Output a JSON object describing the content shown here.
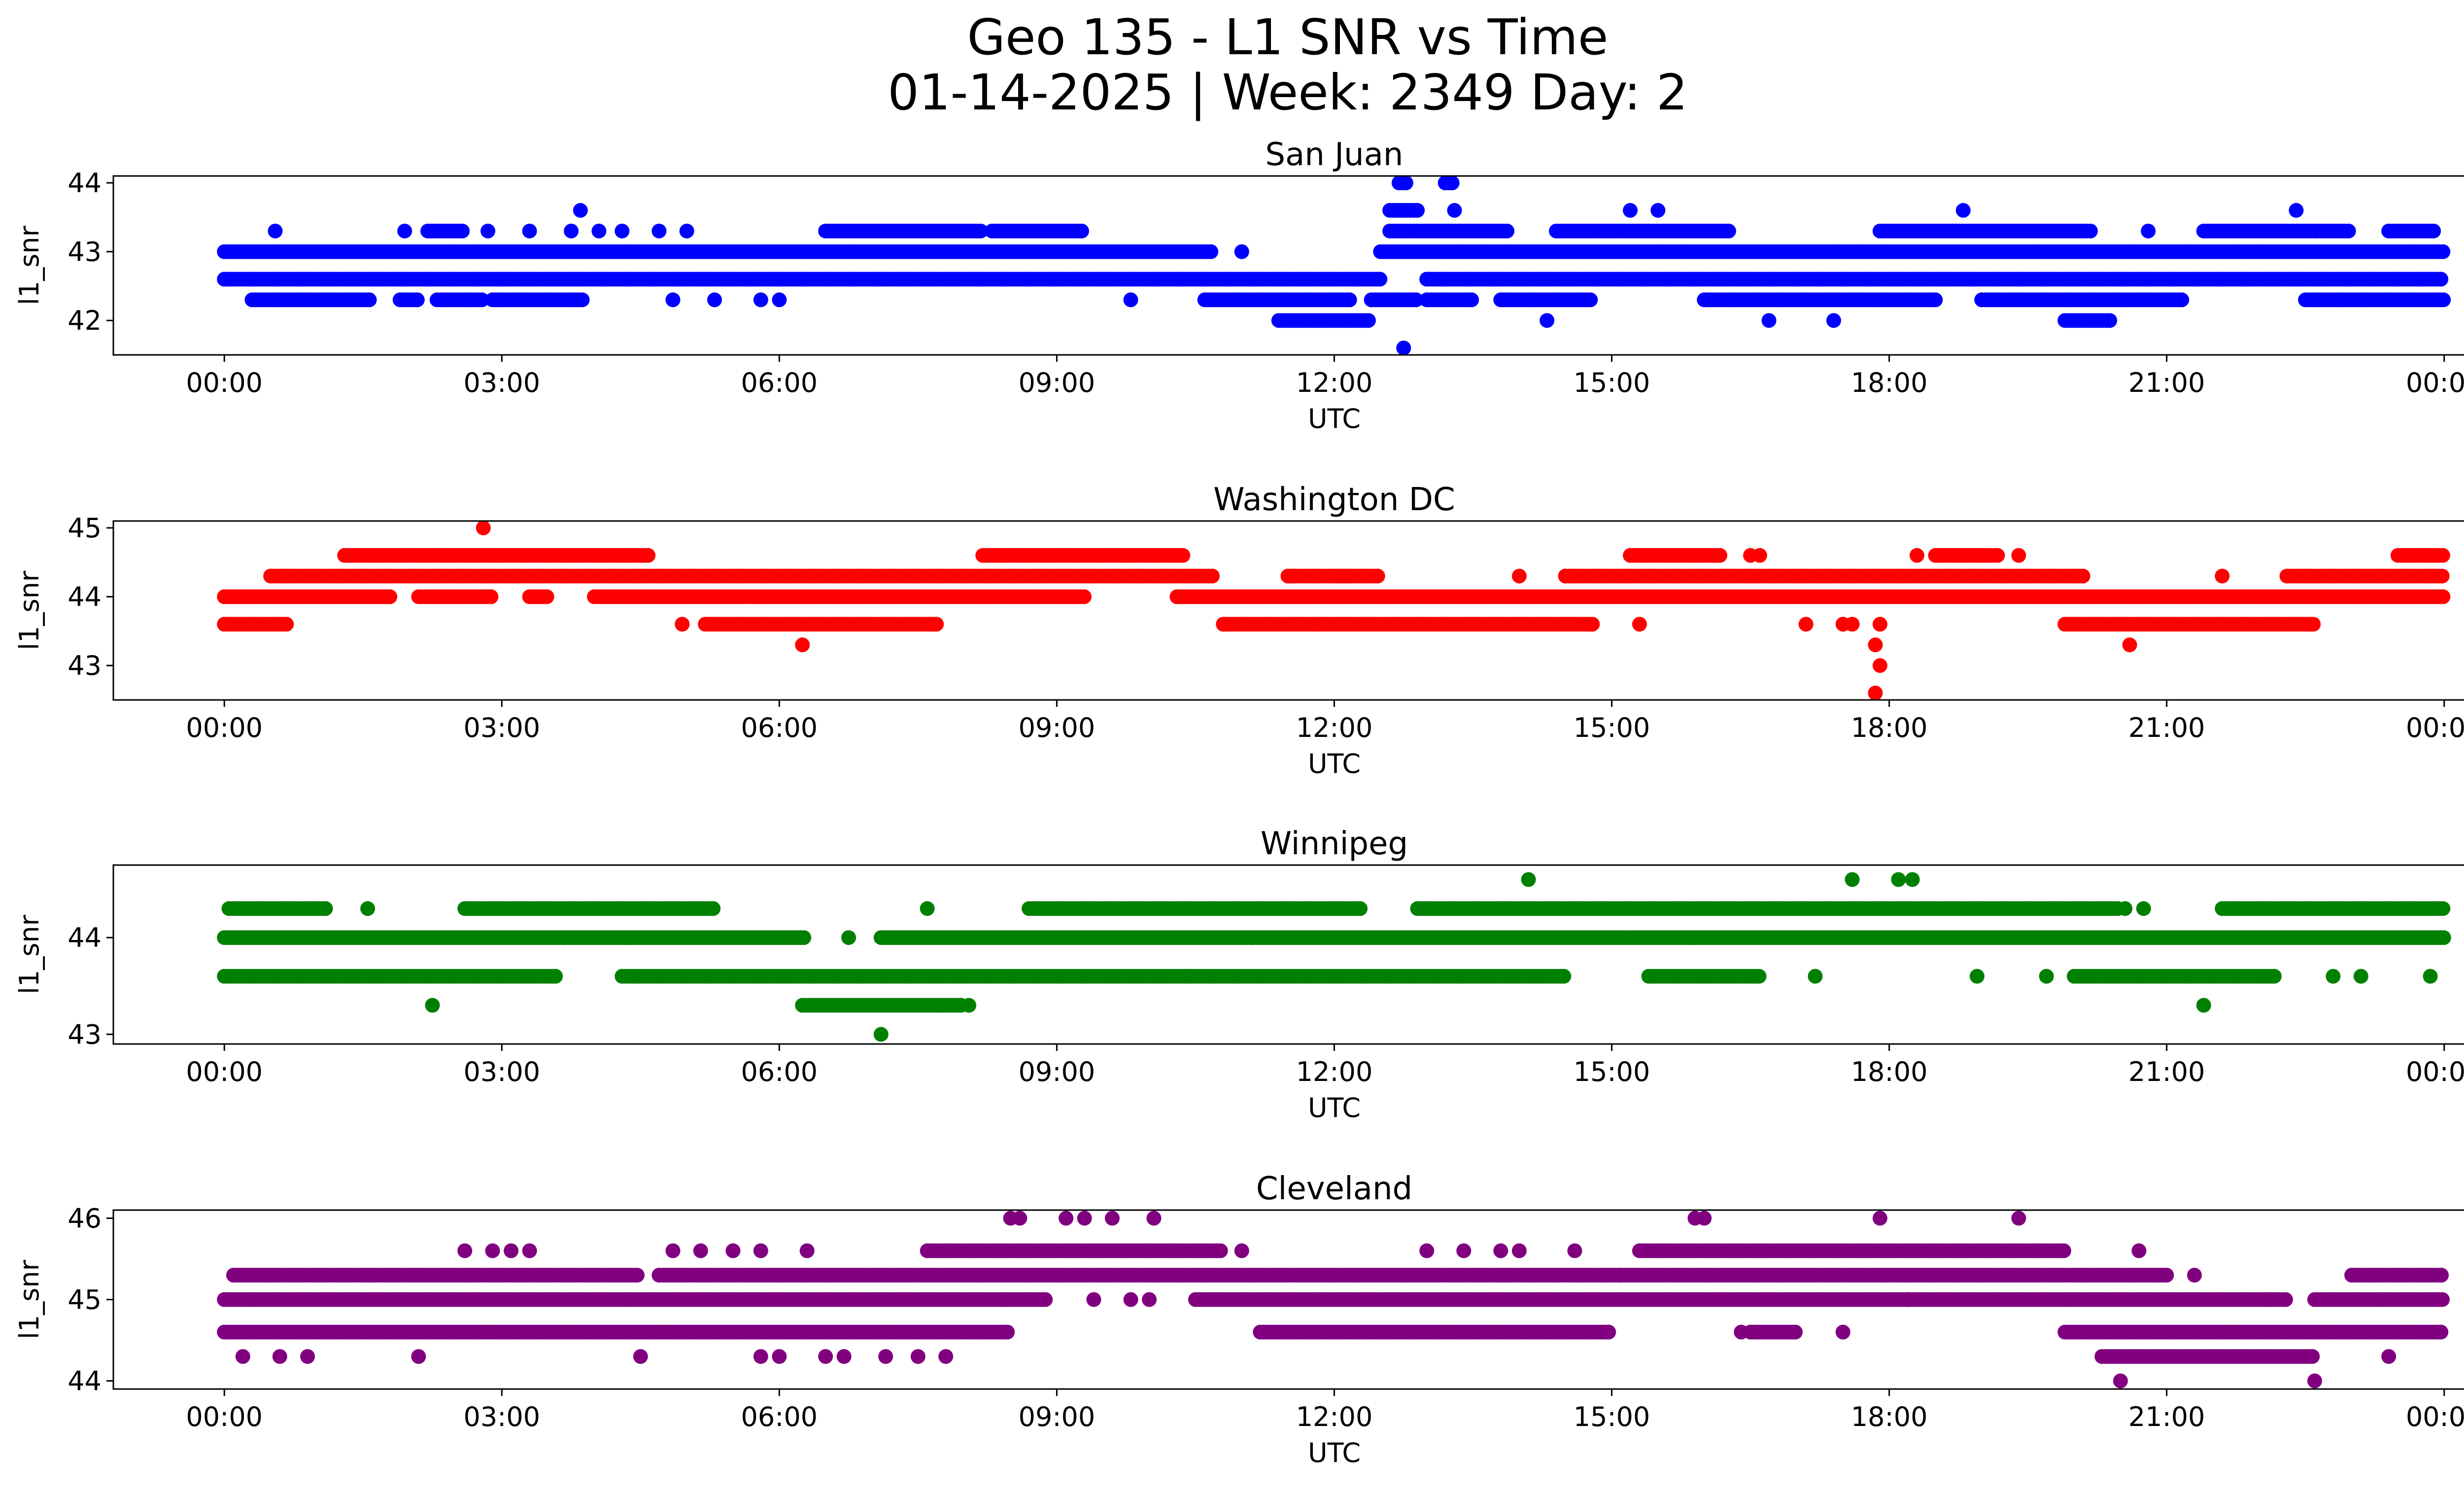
{
  "figure": {
    "title_line1": "Geo 135 - L1 SNR vs Time",
    "title_line2": "01-14-2025 | Week: 2349 Day: 2"
  },
  "chart_data": [
    {
      "type": "scatter",
      "title": "San Juan",
      "xlabel": "UTC",
      "ylabel": "l1_snr",
      "x_ticks": [
        "00:00",
        "03:00",
        "06:00",
        "09:00",
        "12:00",
        "15:00",
        "18:00",
        "21:00",
        "00:00"
      ],
      "x_tick_hours": [
        0,
        3,
        6,
        9,
        12,
        15,
        18,
        21,
        24
      ],
      "xlim_hours": [
        -1.2,
        25.2
      ],
      "y_ticks": [
        42,
        43,
        44
      ],
      "ylim": [
        41.5,
        44.1
      ],
      "color": "#0000ff",
      "series": [
        {
          "bands": [
            {
              "y": 43.0,
              "runs": [
                [
                  0.0,
                  10.7
                ],
                [
                  12.5,
                  24.0
                ]
              ]
            },
            {
              "y": 42.6,
              "runs": [
                [
                  0.0,
                  12.5
                ],
                [
                  13.0,
                  24.0
                ]
              ]
            },
            {
              "y": 42.3,
              "runs": [
                [
                  0.3,
                  1.6
                ],
                [
                  1.9,
                  2.1
                ],
                [
                  2.3,
                  2.8
                ],
                [
                  2.9,
                  3.9
                ],
                [
                  10.6,
                  12.2
                ],
                [
                  12.4,
                  12.9
                ],
                [
                  13.0,
                  13.5
                ],
                [
                  13.8,
                  14.8
                ],
                [
                  16.0,
                  18.5
                ],
                [
                  19.0,
                  21.2
                ],
                [
                  22.5,
                  24.0
                ]
              ]
            },
            {
              "y": 43.3,
              "runs": [
                [
                  2.2,
                  2.6
                ],
                [
                  6.5,
                  8.2
                ],
                [
                  8.3,
                  9.3
                ],
                [
                  12.6,
                  13.9
                ],
                [
                  14.4,
                  16.3
                ],
                [
                  17.9,
                  20.2
                ],
                [
                  21.4,
                  23.0
                ],
                [
                  23.4,
                  23.9
                ]
              ]
            },
            {
              "y": 42.0,
              "runs": [
                [
                  11.4,
                  12.4
                ],
                [
                  19.9,
                  20.4
                ]
              ]
            },
            {
              "y": 43.6,
              "runs": [
                [
                  12.6,
                  12.9
                ]
              ]
            },
            {
              "y": 44.0,
              "runs": [
                [
                  12.7,
                  12.8
                ],
                [
                  13.2,
                  13.3
                ]
              ]
            }
          ]
        },
        {
          "points": [
            [
              0.55,
              43.3
            ],
            [
              1.95,
              43.3
            ],
            [
              2.85,
              43.3
            ],
            [
              3.3,
              43.3
            ],
            [
              3.75,
              43.3
            ],
            [
              3.85,
              43.6
            ],
            [
              4.05,
              43.3
            ],
            [
              4.3,
              43.3
            ],
            [
              4.7,
              43.3
            ],
            [
              5.0,
              43.3
            ],
            [
              4.85,
              42.3
            ],
            [
              5.3,
              42.3
            ],
            [
              5.8,
              42.3
            ],
            [
              6.0,
              42.3
            ],
            [
              9.8,
              42.3
            ],
            [
              11.0,
              43.0
            ],
            [
              13.3,
              43.6
            ],
            [
              14.3,
              42.0
            ],
            [
              15.2,
              43.6
            ],
            [
              15.5,
              43.6
            ],
            [
              16.7,
              42.0
            ],
            [
              17.4,
              42.0
            ],
            [
              18.8,
              43.6
            ],
            [
              20.8,
              43.3
            ],
            [
              22.4,
              43.6
            ],
            [
              12.75,
              41.6
            ]
          ]
        }
      ]
    },
    {
      "type": "scatter",
      "title": "Washington DC",
      "xlabel": "UTC",
      "ylabel": "l1_snr",
      "x_ticks": [
        "00:00",
        "03:00",
        "06:00",
        "09:00",
        "12:00",
        "15:00",
        "18:00",
        "21:00",
        "00:00"
      ],
      "x_tick_hours": [
        0,
        3,
        6,
        9,
        12,
        15,
        18,
        21,
        24
      ],
      "xlim_hours": [
        -1.2,
        25.2
      ],
      "y_ticks": [
        43,
        44,
        45
      ],
      "ylim": [
        42.5,
        45.1
      ],
      "color": "#ff0000",
      "series": [
        {
          "bands": [
            {
              "y": 44.0,
              "runs": [
                [
                  0.0,
                  1.8
                ],
                [
                  2.1,
                  2.9
                ],
                [
                  3.3,
                  3.5
                ],
                [
                  4.0,
                  9.3
                ],
                [
                  10.3,
                  24.0
                ]
              ]
            },
            {
              "y": 44.3,
              "runs": [
                [
                  0.5,
                  10.7
                ],
                [
                  11.5,
                  12.5
                ],
                [
                  12.0,
                  12.2
                ],
                [
                  14.5,
                  20.1
                ],
                [
                  22.3,
                  24.0
                ]
              ]
            },
            {
              "y": 43.6,
              "runs": [
                [
                  0.0,
                  0.7
                ],
                [
                  5.2,
                  7.7
                ],
                [
                  10.8,
                  14.8
                ],
                [
                  19.9,
                  22.6
                ]
              ]
            },
            {
              "y": 44.6,
              "runs": [
                [
                  1.3,
                  4.6
                ],
                [
                  8.2,
                  10.4
                ],
                [
                  15.2,
                  16.2
                ],
                [
                  18.5,
                  19.2
                ],
                [
                  23.5,
                  24.0
                ]
              ]
            }
          ]
        },
        {
          "points": [
            [
              2.8,
              45.0
            ],
            [
              4.95,
              43.6
            ],
            [
              6.25,
              43.3
            ],
            [
              15.3,
              43.6
            ],
            [
              16.5,
              44.6
            ],
            [
              16.6,
              44.6
            ],
            [
              17.1,
              43.6
            ],
            [
              17.5,
              43.6
            ],
            [
              17.6,
              43.6
            ],
            [
              17.9,
              43.6
            ],
            [
              17.85,
              43.3
            ],
            [
              17.9,
              43.0
            ],
            [
              17.85,
              42.6
            ],
            [
              18.3,
              44.6
            ],
            [
              19.4,
              44.6
            ],
            [
              20.6,
              43.3
            ],
            [
              21.6,
              44.3
            ],
            [
              11.5,
              44.3
            ],
            [
              12.3,
              44.3
            ],
            [
              14.0,
              44.3
            ],
            [
              14.5,
              44.3
            ]
          ]
        }
      ]
    },
    {
      "type": "scatter",
      "title": "Winnipeg",
      "xlabel": "UTC",
      "ylabel": "l1_snr",
      "x_ticks": [
        "00:00",
        "03:00",
        "06:00",
        "09:00",
        "12:00",
        "15:00",
        "18:00",
        "21:00",
        "00:00"
      ],
      "x_tick_hours": [
        0,
        3,
        6,
        9,
        12,
        15,
        18,
        21,
        24
      ],
      "xlim_hours": [
        -1.2,
        25.2
      ],
      "y_ticks": [
        43,
        44
      ],
      "ylim": [
        42.9,
        44.75
      ],
      "color": "#008000",
      "series": [
        {
          "bands": [
            {
              "y": 44.0,
              "runs": [
                [
                  0.0,
                  6.3
                ],
                [
                  7.1,
                  24.0
                ]
              ]
            },
            {
              "y": 44.3,
              "runs": [
                [
                  0.05,
                  1.1
                ],
                [
                  2.6,
                  5.3
                ],
                [
                  8.7,
                  12.3
                ],
                [
                  12.9,
                  20.5
                ],
                [
                  21.6,
                  24.0
                ]
              ]
            },
            {
              "y": 43.6,
              "runs": [
                [
                  0.0,
                  3.6
                ],
                [
                  4.3,
                  14.5
                ],
                [
                  15.4,
                  16.6
                ],
                [
                  20.0,
                  22.2
                ]
              ]
            },
            {
              "y": 43.3,
              "runs": [
                [
                  6.25,
                  8.0
                ]
              ]
            }
          ]
        },
        {
          "points": [
            [
              1.55,
              44.3
            ],
            [
              7.6,
              44.3
            ],
            [
              6.75,
              44.0
            ],
            [
              2.25,
              43.3
            ],
            [
              8.05,
              43.3
            ],
            [
              7.1,
              43.0
            ],
            [
              14.1,
              44.6
            ],
            [
              17.6,
              44.6
            ],
            [
              18.1,
              44.6
            ],
            [
              18.25,
              44.6
            ],
            [
              17.2,
              43.6
            ],
            [
              18.95,
              43.6
            ],
            [
              19.7,
              43.6
            ],
            [
              20.55,
              44.3
            ],
            [
              20.75,
              44.3
            ],
            [
              21.4,
              43.3
            ],
            [
              22.8,
              43.6
            ],
            [
              23.1,
              43.6
            ],
            [
              23.85,
              43.6
            ]
          ]
        }
      ]
    },
    {
      "type": "scatter",
      "title": "Cleveland",
      "xlabel": "UTC",
      "ylabel": "l1_snr",
      "x_ticks": [
        "00:00",
        "03:00",
        "06:00",
        "09:00",
        "12:00",
        "15:00",
        "18:00",
        "21:00",
        "00:00"
      ],
      "x_tick_hours": [
        0,
        3,
        6,
        9,
        12,
        15,
        18,
        21,
        24
      ],
      "xlim_hours": [
        -1.2,
        25.2
      ],
      "y_ticks": [
        44,
        45,
        46
      ],
      "ylim": [
        43.9,
        46.1
      ],
      "color": "#800080",
      "series": [
        {
          "bands": [
            {
              "y": 45.0,
              "runs": [
                [
                  0.0,
                  8.9
                ],
                [
                  10.5,
                  22.3
                ],
                [
                  22.6,
                  24.0
                ]
              ]
            },
            {
              "y": 45.3,
              "runs": [
                [
                  0.1,
                  4.5
                ],
                [
                  4.7,
                  21.0
                ],
                [
                  23.0,
                  24.0
                ]
              ]
            },
            {
              "y": 44.6,
              "runs": [
                [
                  0.0,
                  8.5
                ],
                [
                  11.2,
                  15.0
                ],
                [
                  16.5,
                  17.0
                ],
                [
                  19.9,
                  24.0
                ]
              ]
            },
            {
              "y": 45.6,
              "runs": [
                [
                  7.6,
                  10.8
                ],
                [
                  15.3,
                  19.9
                ]
              ]
            },
            {
              "y": 44.3,
              "runs": [
                [
                  20.3,
                  22.6
                ]
              ]
            }
          ]
        },
        {
          "points": [
            [
              0.2,
              44.3
            ],
            [
              0.6,
              44.3
            ],
            [
              0.9,
              44.3
            ],
            [
              2.1,
              44.3
            ],
            [
              2.6,
              45.6
            ],
            [
              2.9,
              45.6
            ],
            [
              3.1,
              45.6
            ],
            [
              3.3,
              45.6
            ],
            [
              4.5,
              44.3
            ],
            [
              4.85,
              45.6
            ],
            [
              5.15,
              45.6
            ],
            [
              5.5,
              45.6
            ],
            [
              5.8,
              45.6
            ],
            [
              6.3,
              45.6
            ],
            [
              5.8,
              44.3
            ],
            [
              6.0,
              44.3
            ],
            [
              6.5,
              44.3
            ],
            [
              6.7,
              44.3
            ],
            [
              7.15,
              44.3
            ],
            [
              7.5,
              44.3
            ],
            [
              7.8,
              44.3
            ],
            [
              8.4,
              44.6
            ],
            [
              8.5,
              46.0
            ],
            [
              8.6,
              46.0
            ],
            [
              9.1,
              46.0
            ],
            [
              9.3,
              46.0
            ],
            [
              9.6,
              46.0
            ],
            [
              10.05,
              46.0
            ],
            [
              9.4,
              45.0
            ],
            [
              9.8,
              45.0
            ],
            [
              10.0,
              45.0
            ],
            [
              11.0,
              45.6
            ],
            [
              13.0,
              45.6
            ],
            [
              13.4,
              45.6
            ],
            [
              13.8,
              45.6
            ],
            [
              14.0,
              45.6
            ],
            [
              14.6,
              45.6
            ],
            [
              15.1,
              45.3
            ],
            [
              15.9,
              46.0
            ],
            [
              16.0,
              46.0
            ],
            [
              16.4,
              44.6
            ],
            [
              16.8,
              44.6
            ],
            [
              17.5,
              44.6
            ],
            [
              17.9,
              46.0
            ],
            [
              18.2,
              45.0
            ],
            [
              19.4,
              46.0
            ],
            [
              20.7,
              45.6
            ],
            [
              20.5,
              44.0
            ],
            [
              21.3,
              45.3
            ],
            [
              22.6,
              44.0
            ],
            [
              22.1,
              45.0
            ],
            [
              23.4,
              44.3
            ],
            [
              23.2,
              45.3
            ]
          ]
        }
      ]
    }
  ]
}
